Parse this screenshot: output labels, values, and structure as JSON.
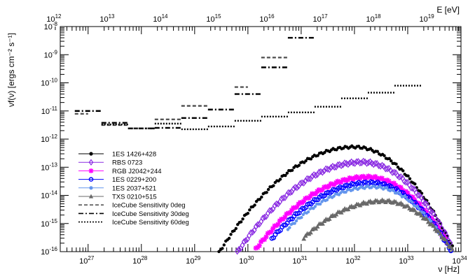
{
  "chart_data": {
    "type": "scatter",
    "title": "",
    "xlabel": "ν [Hz]",
    "ylabel": "νf(ν) [ergs cm⁻² s⁻¹]",
    "top_axis_label": "E [eV]",
    "x_scale": "log",
    "y_scale": "log",
    "xlim": [
      3e+26,
      1e+34
    ],
    "ylim": [
      1e-16,
      1e-08
    ],
    "top_xlim_eV": [
      1240000000000.0,
      4.14e+19
    ],
    "grid": false,
    "legend_position": "lower-left",
    "x_ticks": [
      {
        "base": "10",
        "exp": "27",
        "v": 27
      },
      {
        "base": "10",
        "exp": "28",
        "v": 28
      },
      {
        "base": "10",
        "exp": "29",
        "v": 29
      },
      {
        "base": "10",
        "exp": "30",
        "v": 30
      },
      {
        "base": "10",
        "exp": "31",
        "v": 31
      },
      {
        "base": "10",
        "exp": "32",
        "v": 32
      },
      {
        "base": "10",
        "exp": "33",
        "v": 33
      },
      {
        "base": "10",
        "exp": "34",
        "v": 34
      }
    ],
    "top_ticks": [
      {
        "base": "10",
        "exp": "12",
        "v": 12
      },
      {
        "base": "10",
        "exp": "13",
        "v": 13
      },
      {
        "base": "10",
        "exp": "14",
        "v": 14
      },
      {
        "base": "10",
        "exp": "15",
        "v": 15
      },
      {
        "base": "10",
        "exp": "16",
        "v": 16
      },
      {
        "base": "10",
        "exp": "17",
        "v": 17
      },
      {
        "base": "10",
        "exp": "18",
        "v": 18
      },
      {
        "base": "10",
        "exp": "19",
        "v": 19
      }
    ],
    "y_ticks": [
      {
        "base": "10",
        "exp": "-8",
        "v": -8
      },
      {
        "base": "10",
        "exp": "-9",
        "v": -9
      },
      {
        "base": "10",
        "exp": "-10",
        "v": -10
      },
      {
        "base": "10",
        "exp": "-11",
        "v": -11
      },
      {
        "base": "10",
        "exp": "-12",
        "v": -12
      },
      {
        "base": "10",
        "exp": "-13",
        "v": -13
      },
      {
        "base": "10",
        "exp": "-14",
        "v": -14
      },
      {
        "base": "10",
        "exp": "-15",
        "v": -15
      },
      {
        "base": "10",
        "exp": "-16",
        "v": -16
      }
    ],
    "series": [
      {
        "name": "1ES 1426+428",
        "color": "#000000",
        "marker": "circle",
        "log_x_start": 29.2,
        "log_x_end": 33.85,
        "log_x_peak": 32.0,
        "log_y_peak": -12.28
      },
      {
        "name": "RBS 0723",
        "color": "#8a2be2",
        "marker": "diamond",
        "log_x_start": 29.8,
        "log_x_end": 33.8,
        "log_x_peak": 32.15,
        "log_y_peak": -12.82
      },
      {
        "name": "RGB J2042+244",
        "color": "#ff00ff",
        "marker": "star",
        "log_x_start": 30.15,
        "log_x_end": 33.75,
        "log_x_peak": 32.25,
        "log_y_peak": -13.35
      },
      {
        "name": "1ES 0229+200",
        "color": "#0000ff",
        "marker": "open-circle",
        "log_x_start": 30.45,
        "log_x_end": 34.0,
        "log_x_peak": 32.3,
        "log_y_peak": -13.55
      },
      {
        "name": "1ES 2037+521",
        "color": "#6495ed",
        "marker": "circle",
        "log_x_start": 30.75,
        "log_x_end": 33.65,
        "log_x_peak": 32.35,
        "log_y_peak": -13.7
      },
      {
        "name": "TXS 0210+515",
        "color": "#696969",
        "marker": "triangle",
        "log_x_start": 31.05,
        "log_x_end": 34.0,
        "log_x_peak": 32.55,
        "log_y_peak": -14.2
      }
    ],
    "sensitivity": [
      {
        "name": "IceCube Sensitivity 0deg",
        "dash": "dashed",
        "segments": [
          {
            "x0": 26.75,
            "x1": 27.0,
            "y": -11.1
          },
          {
            "x0": 27.25,
            "x1": 27.75,
            "y": -11.5
          },
          {
            "x0": 28.25,
            "x1": 28.75,
            "y": -11.3
          },
          {
            "x0": 28.75,
            "x1": 29.25,
            "y": -10.82
          },
          {
            "x0": 29.75,
            "x1": 30.0,
            "y": -10.15
          },
          {
            "x0": 30.25,
            "x1": 30.75,
            "y": -9.1
          }
        ]
      },
      {
        "name": "IceCube Sensitivity 30deg",
        "dash": "dashdot",
        "segments": [
          {
            "x0": 26.75,
            "x1": 27.25,
            "y": -11.0
          },
          {
            "x0": 27.25,
            "x1": 27.75,
            "y": -11.42
          },
          {
            "x0": 27.75,
            "x1": 28.25,
            "y": -11.62
          },
          {
            "x0": 28.25,
            "x1": 28.75,
            "y": -11.6
          },
          {
            "x0": 28.75,
            "x1": 29.25,
            "y": -11.25
          },
          {
            "x0": 29.25,
            "x1": 29.75,
            "y": -10.95
          },
          {
            "x0": 29.75,
            "x1": 30.25,
            "y": -10.4
          },
          {
            "x0": 30.25,
            "x1": 30.75,
            "y": -9.45
          },
          {
            "x0": 30.75,
            "x1": 31.25,
            "y": -8.4
          }
        ]
      },
      {
        "name": "IceCube Sensitivity 60deg",
        "dash": "dotted",
        "segments": [
          {
            "x0": 27.25,
            "x1": 27.75,
            "y": -11.48
          },
          {
            "x0": 27.75,
            "x1": 28.25,
            "y": -11.62
          },
          {
            "x0": 28.25,
            "x1": 28.75,
            "y": -11.45
          },
          {
            "x0": 28.75,
            "x1": 29.25,
            "y": -11.65
          },
          {
            "x0": 29.25,
            "x1": 29.75,
            "y": -11.55
          },
          {
            "x0": 29.75,
            "x1": 30.25,
            "y": -11.35
          },
          {
            "x0": 30.25,
            "x1": 30.75,
            "y": -11.2
          },
          {
            "x0": 30.75,
            "x1": 31.25,
            "y": -11.05
          },
          {
            "x0": 31.25,
            "x1": 31.75,
            "y": -10.85
          },
          {
            "x0": 31.75,
            "x1": 32.25,
            "y": -10.55
          },
          {
            "x0": 32.25,
            "x1": 32.75,
            "y": -10.35
          },
          {
            "x0": 32.75,
            "x1": 33.25,
            "y": -10.1
          }
        ]
      }
    ]
  }
}
